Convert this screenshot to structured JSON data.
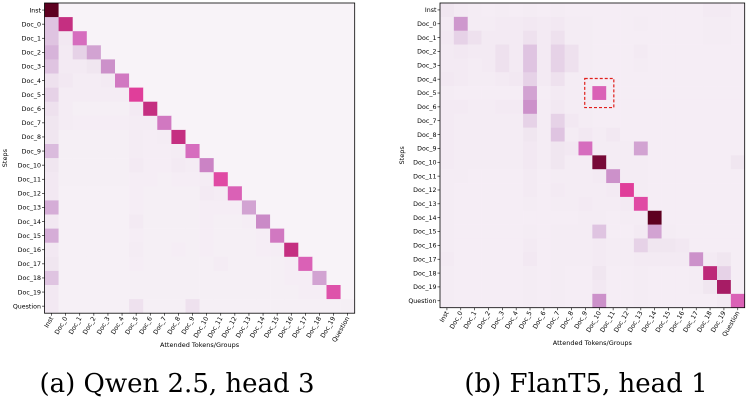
{
  "chart_data": [
    {
      "type": "heatmap",
      "caption": "(a) Qwen 2.5, head 3",
      "xlabel": "Attended Tokens/Groups",
      "ylabel": "Steps",
      "rows": [
        "Inst",
        "Doc_0",
        "Doc_1",
        "Doc_2",
        "Doc_3",
        "Doc_4",
        "Doc_5",
        "Doc_6",
        "Doc_7",
        "Doc_8",
        "Doc_9",
        "Doc_10",
        "Doc_11",
        "Doc_12",
        "Doc_13",
        "Doc_14",
        "Doc_15",
        "Doc_16",
        "Doc_17",
        "Doc_18",
        "Doc_19",
        "Question"
      ],
      "cols": [
        "Inst",
        "Doc_0",
        "Doc_1",
        "Doc_2",
        "Doc_3",
        "Doc_4",
        "Doc_5",
        "Doc_6",
        "Doc_7",
        "Doc_8",
        "Doc_9",
        "Doc_10",
        "Doc_11",
        "Doc_12",
        "Doc_13",
        "Doc_14",
        "Doc_15",
        "Doc_16",
        "Doc_17",
        "Doc_18",
        "Doc_19",
        "Question"
      ],
      "colors": [
        "#f8f3f8",
        "#efe3ef",
        "#d9b9dc",
        "#c987c6",
        "#d869bc",
        "#e2409c",
        "#a41a62",
        "#5e0020"
      ],
      "values": [
        [
          1.0,
          0.0,
          0.0,
          0.0,
          0.0,
          0.0,
          0.0,
          0.0,
          0.0,
          0.0,
          0.0,
          0.0,
          0.0,
          0.0,
          0.0,
          0.0,
          0.0,
          0.0,
          0.0,
          0.0,
          0.0,
          0.0
        ],
        [
          0.25,
          0.78,
          0.0,
          0.0,
          0.0,
          0.0,
          0.0,
          0.0,
          0.0,
          0.0,
          0.0,
          0.0,
          0.0,
          0.0,
          0.0,
          0.0,
          0.0,
          0.0,
          0.0,
          0.0,
          0.0,
          0.0
        ],
        [
          0.25,
          0.1,
          0.55,
          0.0,
          0.0,
          0.0,
          0.0,
          0.0,
          0.0,
          0.0,
          0.0,
          0.0,
          0.0,
          0.0,
          0.0,
          0.0,
          0.0,
          0.0,
          0.0,
          0.0,
          0.0,
          0.0
        ],
        [
          0.3,
          0.08,
          0.2,
          0.35,
          0.0,
          0.0,
          0.0,
          0.0,
          0.0,
          0.0,
          0.0,
          0.0,
          0.0,
          0.0,
          0.0,
          0.0,
          0.0,
          0.0,
          0.0,
          0.0,
          0.0,
          0.0
        ],
        [
          0.25,
          0.08,
          0.08,
          0.12,
          0.4,
          0.0,
          0.0,
          0.0,
          0.0,
          0.0,
          0.0,
          0.0,
          0.0,
          0.0,
          0.0,
          0.0,
          0.0,
          0.0,
          0.0,
          0.0,
          0.0,
          0.0
        ],
        [
          0.15,
          0.1,
          0.06,
          0.06,
          0.08,
          0.5,
          0.0,
          0.0,
          0.0,
          0.0,
          0.0,
          0.0,
          0.0,
          0.0,
          0.0,
          0.0,
          0.0,
          0.0,
          0.0,
          0.0,
          0.0,
          0.0
        ],
        [
          0.2,
          0.06,
          0.06,
          0.06,
          0.06,
          0.06,
          0.72,
          0.0,
          0.0,
          0.0,
          0.0,
          0.0,
          0.0,
          0.0,
          0.0,
          0.0,
          0.0,
          0.0,
          0.0,
          0.0,
          0.0,
          0.0
        ],
        [
          0.15,
          0.06,
          0.04,
          0.04,
          0.04,
          0.04,
          0.08,
          0.78,
          0.0,
          0.0,
          0.0,
          0.0,
          0.0,
          0.0,
          0.0,
          0.0,
          0.0,
          0.0,
          0.0,
          0.0,
          0.0,
          0.0
        ],
        [
          0.12,
          0.06,
          0.05,
          0.05,
          0.05,
          0.05,
          0.06,
          0.06,
          0.5,
          0.0,
          0.0,
          0.0,
          0.0,
          0.0,
          0.0,
          0.0,
          0.0,
          0.0,
          0.0,
          0.0,
          0.0,
          0.0
        ],
        [
          0.12,
          0.04,
          0.04,
          0.04,
          0.04,
          0.04,
          0.06,
          0.05,
          0.06,
          0.78,
          0.0,
          0.0,
          0.0,
          0.0,
          0.0,
          0.0,
          0.0,
          0.0,
          0.0,
          0.0,
          0.0,
          0.0
        ],
        [
          0.28,
          0.04,
          0.04,
          0.04,
          0.04,
          0.04,
          0.06,
          0.05,
          0.05,
          0.06,
          0.55,
          0.0,
          0.0,
          0.0,
          0.0,
          0.0,
          0.0,
          0.0,
          0.0,
          0.0,
          0.0,
          0.0
        ],
        [
          0.12,
          0.04,
          0.04,
          0.04,
          0.04,
          0.04,
          0.08,
          0.05,
          0.05,
          0.08,
          0.06,
          0.45,
          0.0,
          0.0,
          0.0,
          0.0,
          0.0,
          0.0,
          0.0,
          0.0,
          0.0,
          0.0
        ],
        [
          0.1,
          0.04,
          0.04,
          0.04,
          0.04,
          0.04,
          0.05,
          0.05,
          0.04,
          0.05,
          0.05,
          0.06,
          0.68,
          0.0,
          0.0,
          0.0,
          0.0,
          0.0,
          0.0,
          0.0,
          0.0,
          0.0
        ],
        [
          0.1,
          0.03,
          0.03,
          0.03,
          0.03,
          0.03,
          0.05,
          0.04,
          0.04,
          0.04,
          0.04,
          0.08,
          0.06,
          0.6,
          0.0,
          0.0,
          0.0,
          0.0,
          0.0,
          0.0,
          0.0,
          0.0
        ],
        [
          0.32,
          0.03,
          0.03,
          0.03,
          0.03,
          0.03,
          0.05,
          0.04,
          0.04,
          0.04,
          0.04,
          0.05,
          0.05,
          0.05,
          0.35,
          0.0,
          0.0,
          0.0,
          0.0,
          0.0,
          0.0,
          0.0
        ],
        [
          0.1,
          0.03,
          0.03,
          0.03,
          0.03,
          0.03,
          0.08,
          0.04,
          0.04,
          0.04,
          0.04,
          0.05,
          0.04,
          0.04,
          0.05,
          0.42,
          0.0,
          0.0,
          0.0,
          0.0,
          0.0,
          0.0
        ],
        [
          0.32,
          0.03,
          0.03,
          0.03,
          0.03,
          0.03,
          0.05,
          0.04,
          0.04,
          0.04,
          0.04,
          0.05,
          0.04,
          0.04,
          0.04,
          0.05,
          0.5,
          0.0,
          0.0,
          0.0,
          0.0,
          0.0
        ],
        [
          0.1,
          0.03,
          0.03,
          0.03,
          0.03,
          0.03,
          0.06,
          0.04,
          0.04,
          0.05,
          0.04,
          0.05,
          0.04,
          0.04,
          0.04,
          0.05,
          0.05,
          0.78,
          0.0,
          0.0,
          0.0,
          0.0
        ],
        [
          0.12,
          0.03,
          0.03,
          0.03,
          0.03,
          0.03,
          0.05,
          0.04,
          0.04,
          0.04,
          0.04,
          0.04,
          0.06,
          0.04,
          0.04,
          0.04,
          0.04,
          0.05,
          0.6,
          0.0,
          0.0,
          0.0
        ],
        [
          0.25,
          0.03,
          0.03,
          0.03,
          0.03,
          0.03,
          0.04,
          0.04,
          0.04,
          0.04,
          0.04,
          0.04,
          0.04,
          0.04,
          0.04,
          0.04,
          0.04,
          0.05,
          0.05,
          0.35,
          0.0,
          0.0
        ],
        [
          0.1,
          0.03,
          0.03,
          0.03,
          0.03,
          0.03,
          0.04,
          0.04,
          0.04,
          0.04,
          0.04,
          0.04,
          0.04,
          0.04,
          0.04,
          0.04,
          0.04,
          0.04,
          0.05,
          0.05,
          0.65,
          0.0
        ],
        [
          0.1,
          0.03,
          0.03,
          0.03,
          0.03,
          0.03,
          0.15,
          0.04,
          0.04,
          0.04,
          0.15,
          0.04,
          0.04,
          0.04,
          0.04,
          0.04,
          0.04,
          0.04,
          0.04,
          0.04,
          0.04,
          0.04
        ]
      ]
    },
    {
      "type": "heatmap",
      "caption": "(b) FlanT5, head 1",
      "xlabel": "Attended Tokens/Groups",
      "ylabel": "Steps",
      "rows": [
        "Inst",
        "Doc_0",
        "Doc_1",
        "Doc_2",
        "Doc_3",
        "Doc_4",
        "Doc_5",
        "Doc_6",
        "Doc_7",
        "Doc_8",
        "Doc_9",
        "Doc_10",
        "Doc_11",
        "Doc_12",
        "Doc_13",
        "Doc_14",
        "Doc_15",
        "Doc_16",
        "Doc_17",
        "Doc_18",
        "Doc_19",
        "Question"
      ],
      "cols": [
        "Inst",
        "Doc_0",
        "Doc_1",
        "Doc_2",
        "Doc_3",
        "Doc_4",
        "Doc_5",
        "Doc_6",
        "Doc_7",
        "Doc_8",
        "Doc_9",
        "Doc_10",
        "Doc_11",
        "Doc_12",
        "Doc_13",
        "Doc_14",
        "Doc_15",
        "Doc_16",
        "Doc_17",
        "Doc_18",
        "Doc_19",
        "Question"
      ],
      "colors": [
        "#f8f3f8",
        "#efe3ef",
        "#d9b9dc",
        "#c987c6",
        "#d869bc",
        "#e2409c",
        "#a41a62",
        "#5e0020"
      ],
      "highlight": {
        "row": 6,
        "col": 11
      },
      "values": [
        [
          0.12,
          0.08,
          0.06,
          0.05,
          0.06,
          0.05,
          0.06,
          0.05,
          0.06,
          0.05,
          0.05,
          0.05,
          0.05,
          0.05,
          0.05,
          0.05,
          0.05,
          0.05,
          0.05,
          0.08,
          0.08,
          0.05
        ],
        [
          0.08,
          0.38,
          0.06,
          0.06,
          0.08,
          0.08,
          0.1,
          0.08,
          0.1,
          0.06,
          0.06,
          0.05,
          0.05,
          0.05,
          0.06,
          0.05,
          0.05,
          0.05,
          0.05,
          0.06,
          0.06,
          0.05
        ],
        [
          0.1,
          0.2,
          0.15,
          0.08,
          0.08,
          0.08,
          0.15,
          0.08,
          0.15,
          0.06,
          0.06,
          0.05,
          0.05,
          0.05,
          0.05,
          0.05,
          0.05,
          0.05,
          0.05,
          0.06,
          0.06,
          0.05
        ],
        [
          0.08,
          0.1,
          0.08,
          0.08,
          0.15,
          0.08,
          0.25,
          0.08,
          0.2,
          0.15,
          0.06,
          0.05,
          0.05,
          0.05,
          0.08,
          0.05,
          0.05,
          0.05,
          0.05,
          0.05,
          0.05,
          0.05
        ],
        [
          0.08,
          0.08,
          0.06,
          0.08,
          0.15,
          0.08,
          0.25,
          0.08,
          0.2,
          0.15,
          0.06,
          0.05,
          0.05,
          0.05,
          0.06,
          0.05,
          0.05,
          0.05,
          0.05,
          0.05,
          0.05,
          0.05
        ],
        [
          0.1,
          0.08,
          0.06,
          0.06,
          0.08,
          0.1,
          0.2,
          0.08,
          0.15,
          0.06,
          0.06,
          0.05,
          0.05,
          0.05,
          0.05,
          0.05,
          0.05,
          0.05,
          0.05,
          0.05,
          0.05,
          0.05
        ],
        [
          0.06,
          0.05,
          0.05,
          0.05,
          0.05,
          0.05,
          0.35,
          0.05,
          0.08,
          0.06,
          0.06,
          0.6,
          0.05,
          0.05,
          0.05,
          0.05,
          0.05,
          0.05,
          0.05,
          0.05,
          0.05,
          0.05
        ],
        [
          0.08,
          0.08,
          0.06,
          0.06,
          0.08,
          0.08,
          0.4,
          0.06,
          0.1,
          0.06,
          0.06,
          0.05,
          0.05,
          0.05,
          0.05,
          0.05,
          0.05,
          0.05,
          0.05,
          0.05,
          0.05,
          0.05
        ],
        [
          0.08,
          0.06,
          0.06,
          0.06,
          0.06,
          0.06,
          0.2,
          0.06,
          0.2,
          0.1,
          0.06,
          0.05,
          0.05,
          0.05,
          0.05,
          0.05,
          0.05,
          0.05,
          0.05,
          0.05,
          0.05,
          0.05
        ],
        [
          0.08,
          0.06,
          0.06,
          0.06,
          0.06,
          0.06,
          0.12,
          0.06,
          0.25,
          0.06,
          0.1,
          0.06,
          0.1,
          0.05,
          0.05,
          0.05,
          0.05,
          0.05,
          0.05,
          0.05,
          0.05,
          0.05
        ],
        [
          0.08,
          0.06,
          0.06,
          0.06,
          0.06,
          0.06,
          0.1,
          0.06,
          0.12,
          0.1,
          0.55,
          0.06,
          0.06,
          0.06,
          0.35,
          0.05,
          0.05,
          0.05,
          0.05,
          0.05,
          0.05,
          0.05
        ],
        [
          0.08,
          0.06,
          0.06,
          0.06,
          0.06,
          0.06,
          0.1,
          0.06,
          0.12,
          0.06,
          0.06,
          0.95,
          0.06,
          0.06,
          0.06,
          0.05,
          0.05,
          0.05,
          0.05,
          0.05,
          0.05,
          0.12
        ],
        [
          0.06,
          0.06,
          0.05,
          0.05,
          0.05,
          0.05,
          0.08,
          0.05,
          0.06,
          0.06,
          0.06,
          0.08,
          0.4,
          0.06,
          0.06,
          0.05,
          0.05,
          0.05,
          0.05,
          0.05,
          0.05,
          0.05
        ],
        [
          0.06,
          0.05,
          0.05,
          0.05,
          0.05,
          0.05,
          0.08,
          0.05,
          0.08,
          0.06,
          0.06,
          0.06,
          0.08,
          0.72,
          0.06,
          0.05,
          0.05,
          0.05,
          0.05,
          0.05,
          0.05,
          0.05
        ],
        [
          0.06,
          0.05,
          0.05,
          0.05,
          0.05,
          0.05,
          0.06,
          0.05,
          0.06,
          0.06,
          0.08,
          0.06,
          0.06,
          0.08,
          0.68,
          0.05,
          0.05,
          0.05,
          0.05,
          0.05,
          0.05,
          0.05
        ],
        [
          0.06,
          0.05,
          0.05,
          0.05,
          0.05,
          0.05,
          0.05,
          0.05,
          0.05,
          0.05,
          0.06,
          0.06,
          0.05,
          0.06,
          0.06,
          1.0,
          0.05,
          0.05,
          0.05,
          0.05,
          0.05,
          0.05
        ],
        [
          0.06,
          0.05,
          0.05,
          0.05,
          0.05,
          0.05,
          0.06,
          0.05,
          0.06,
          0.06,
          0.06,
          0.25,
          0.05,
          0.05,
          0.08,
          0.35,
          0.06,
          0.05,
          0.05,
          0.05,
          0.05,
          0.05
        ],
        [
          0.06,
          0.05,
          0.05,
          0.05,
          0.05,
          0.05,
          0.08,
          0.05,
          0.06,
          0.06,
          0.06,
          0.08,
          0.06,
          0.06,
          0.2,
          0.12,
          0.12,
          0.1,
          0.05,
          0.05,
          0.05,
          0.05
        ],
        [
          0.08,
          0.05,
          0.05,
          0.05,
          0.05,
          0.05,
          0.1,
          0.05,
          0.06,
          0.06,
          0.06,
          0.08,
          0.06,
          0.06,
          0.08,
          0.08,
          0.08,
          0.08,
          0.4,
          0.08,
          0.12,
          0.05
        ],
        [
          0.06,
          0.05,
          0.05,
          0.05,
          0.05,
          0.05,
          0.06,
          0.05,
          0.06,
          0.05,
          0.05,
          0.12,
          0.05,
          0.05,
          0.06,
          0.05,
          0.05,
          0.05,
          0.06,
          0.8,
          0.2,
          0.05
        ],
        [
          0.06,
          0.05,
          0.05,
          0.05,
          0.05,
          0.05,
          0.06,
          0.05,
          0.06,
          0.05,
          0.05,
          0.1,
          0.05,
          0.05,
          0.06,
          0.05,
          0.05,
          0.05,
          0.06,
          0.12,
          0.85,
          0.05
        ],
        [
          0.06,
          0.05,
          0.05,
          0.05,
          0.05,
          0.05,
          0.06,
          0.05,
          0.06,
          0.05,
          0.05,
          0.4,
          0.05,
          0.05,
          0.06,
          0.05,
          0.05,
          0.05,
          0.05,
          0.05,
          0.08,
          0.6
        ]
      ]
    }
  ]
}
